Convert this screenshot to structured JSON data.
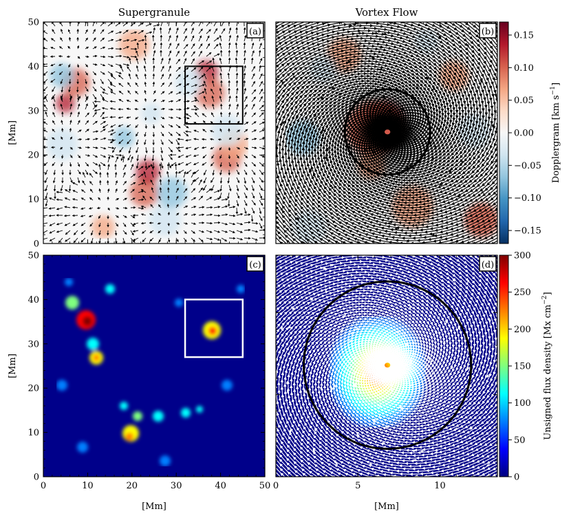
{
  "figure": {
    "col_titles": [
      "Supergranule",
      "Vortex Flow"
    ],
    "panel_tags": [
      "(a)",
      "(b)",
      "(c)",
      "(d)"
    ],
    "xlabel": "[Mm]",
    "ylabel": "[Mm]"
  },
  "colors": {
    "rdbu": [
      "#053061",
      "#2166ac",
      "#4393c3",
      "#92c5de",
      "#d1e5f0",
      "#f7f7f7",
      "#fddbc7",
      "#f4a582",
      "#d6604d",
      "#b2182b",
      "#67001f"
    ],
    "jet": [
      "#00007f",
      "#0000ff",
      "#007fff",
      "#00ffff",
      "#7fff7f",
      "#ffff00",
      "#ff7f00",
      "#ff0000",
      "#7f0000"
    ],
    "box_a": "#000000",
    "box_c": "#ffffff",
    "circle": "#000000"
  },
  "chart_data": [
    {
      "panel": "(a)",
      "type": "heatmap",
      "overlay": "velocity arrows",
      "title": "Supergranule",
      "xlabel": "",
      "ylabel": "[Mm]",
      "xlim": [
        0,
        50
      ],
      "ylim": [
        0,
        50
      ],
      "yticks": [
        "0",
        "10",
        "20",
        "30",
        "40",
        "50"
      ],
      "zoom_box": {
        "x": [
          32,
          45
        ],
        "y": [
          27,
          40
        ]
      }
    },
    {
      "panel": "(b)",
      "type": "heatmap",
      "overlay": "streamlines",
      "title": "Vortex Flow",
      "xlim": [
        0,
        13.5
      ],
      "ylim": [
        0,
        13.5
      ],
      "circle": {
        "center": [
          6.8,
          6.8
        ],
        "radius": 2.6
      },
      "colorbar": {
        "label": "Dopplergram [km s$^{-1}$]",
        "label_main": "Dopplergram [km s",
        "label_sup": "−1",
        "label_end": "]",
        "range": [
          -0.17,
          0.17
        ],
        "ticks": [
          -0.15,
          -0.1,
          -0.05,
          0.0,
          0.05,
          0.1,
          0.15
        ],
        "tick_labels": [
          "−0.15",
          "−0.10",
          "−0.05",
          "0.00",
          "0.05",
          "0.10",
          "0.15"
        ]
      }
    },
    {
      "panel": "(c)",
      "type": "heatmap",
      "xlabel": "[Mm]",
      "ylabel": "[Mm]",
      "xlim": [
        0,
        50
      ],
      "ylim": [
        0,
        50
      ],
      "xticks": [
        "0",
        "10",
        "20",
        "30",
        "40",
        "50"
      ],
      "yticks": [
        "0",
        "10",
        "20",
        "30",
        "40",
        "50"
      ],
      "zoom_box": {
        "x": [
          32,
          45
        ],
        "y": [
          27,
          40
        ]
      }
    },
    {
      "panel": "(d)",
      "type": "heatmap",
      "overlay": "streamlines",
      "xlabel": "[Mm]",
      "xlim": [
        0,
        13.5
      ],
      "ylim": [
        0,
        13.5
      ],
      "xticks": [
        "0",
        "5",
        "10"
      ],
      "circle": {
        "center": [
          6.8,
          6.8
        ],
        "radius": 5.1
      },
      "colorbar": {
        "label_main": "Unsigned flux density [Mx cm",
        "label_sup": "−2",
        "label_end": "]",
        "range": [
          0,
          300
        ],
        "ticks": [
          0,
          50,
          100,
          150,
          200,
          250,
          300
        ],
        "tick_labels": [
          "0",
          "50",
          "100",
          "150",
          "200",
          "250",
          "300"
        ]
      }
    }
  ]
}
